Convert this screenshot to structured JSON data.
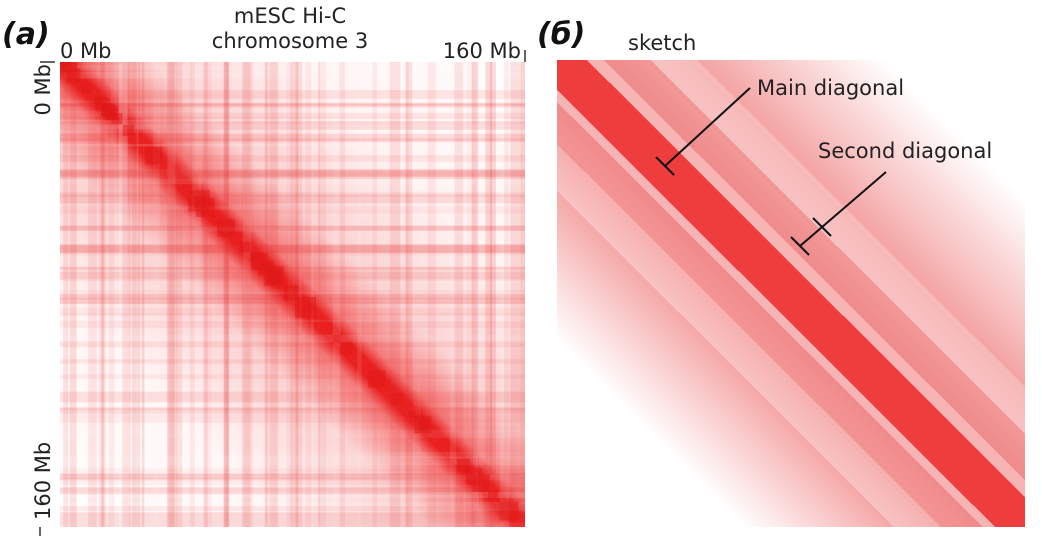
{
  "panels": [
    {
      "label": "(a)",
      "title": [
        "mESC Hi-C",
        "chromosome 3"
      ],
      "x_labels": [
        "0 Mb",
        "160 Mb"
      ],
      "y_labels": [
        "0 Mb",
        "160 Mb"
      ]
    },
    {
      "label": "(б)",
      "title": "sketch",
      "annotations": [
        "Main diagonal",
        "Second diagonal"
      ]
    }
  ]
}
